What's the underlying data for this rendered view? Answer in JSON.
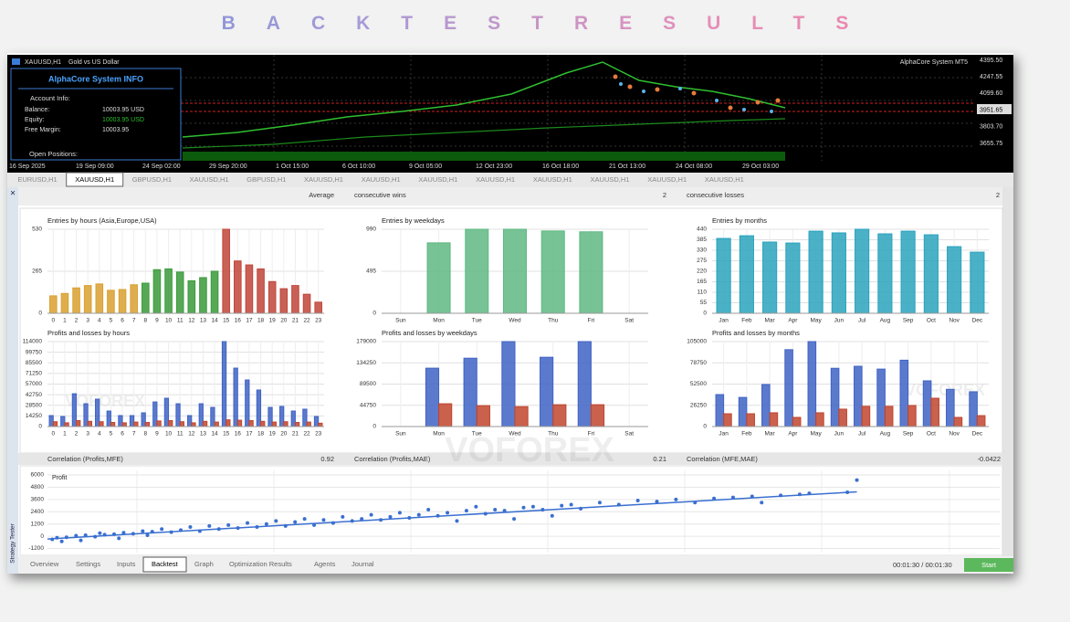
{
  "header": {
    "title": "BACKTESTRESULTS"
  },
  "terminal": {
    "symbol": "XAUUSD,H1",
    "description": "Gold vs US Dollar",
    "expert": "AlphaCore System MT5",
    "price_labels": [
      "4395.50",
      "4247.55",
      "4099.60",
      "3951.65",
      "3803.70",
      "3655.75"
    ],
    "time_labels": [
      "16 Sep 2025",
      "19 Sep 09:00",
      "24 Sep 02:00",
      "29 Sep 20:00",
      "1 Oct 15:00",
      "6 Oct 10:00",
      "9 Oct 05:00",
      "12 Oct 23:00",
      "16 Oct 18:00",
      "21 Oct 13:00",
      "24 Oct 08:00",
      "29 Oct 03:00"
    ]
  },
  "info_panel": {
    "title": "AlphaCore System INFO",
    "account": "Account Info:",
    "rows": [
      [
        "Balance:",
        "10003.95 USD"
      ],
      [
        "Equity:",
        "10003.95 USD"
      ],
      [
        "Free Margin:",
        "10003.95"
      ]
    ],
    "positions": "Open Positions:"
  },
  "symbol_tabs": {
    "items": [
      "EURUSD,H1",
      "XAUUSD,H1",
      "GBPUSD,H1",
      "XAUUSD,H1",
      "GBPUSD,H1",
      "XAUUSD,H1",
      "XAUUSD,H1",
      "XAUUSD,H1",
      "XAUUSD,H1",
      "XAUUSD,H1",
      "XAUUSD,H1",
      "XAUUSD,H1",
      "XAUUSD,H1"
    ],
    "active": 1
  },
  "stats": {
    "label": "Average",
    "wins_label": "consecutive wins",
    "wins": 2,
    "losses_label": "consecutive losses",
    "losses": 2
  },
  "correlations": [
    {
      "label": "Correlation (Profits,MFE)",
      "value": 0.92
    },
    {
      "label": "Correlation (Profits,MAE)",
      "value": 0.21
    },
    {
      "label": "Correlation (MFE,MAE)",
      "value": -0.0422
    }
  ],
  "chart_data": [
    {
      "type": "bar",
      "title": "Entries by hours (Asia,Europe,USA)",
      "categories": [
        0,
        1,
        2,
        3,
        4,
        5,
        6,
        7,
        8,
        9,
        10,
        11,
        12,
        13,
        14,
        15,
        16,
        17,
        18,
        19,
        20,
        21,
        22,
        23
      ],
      "ylim": [
        0,
        530
      ],
      "yticks": [
        0,
        265,
        530
      ],
      "series": [
        {
          "colors": [
            "#d9a030",
            "#d9a030",
            "#d9a030",
            "#d9a030",
            "#d9a030",
            "#d9a030",
            "#d9a030",
            "#d9a030",
            "#3a9a3a",
            "#3a9a3a",
            "#3a9a3a",
            "#3a9a3a",
            "#3a9a3a",
            "#3a9a3a",
            "#3a9a3a",
            "#c0453a",
            "#c0453a",
            "#c0453a",
            "#c0453a",
            "#c0453a",
            "#c0453a",
            "#c0453a",
            "#c0453a",
            "#c0453a"
          ],
          "values": [
            110,
            125,
            160,
            175,
            185,
            145,
            150,
            180,
            190,
            275,
            280,
            260,
            205,
            225,
            265,
            530,
            330,
            305,
            280,
            200,
            155,
            175,
            120,
            70
          ]
        }
      ]
    },
    {
      "type": "bar",
      "title": "Entries by weekdays",
      "categories": [
        "Sun",
        "Mon",
        "Tue",
        "Wed",
        "Thu",
        "Fri",
        "Sat"
      ],
      "ylim": [
        0,
        990
      ],
      "yticks": [
        0,
        495,
        990
      ],
      "series": [
        {
          "color": "#5fb883",
          "values": [
            0,
            830,
            990,
            990,
            970,
            960,
            0
          ]
        }
      ]
    },
    {
      "type": "bar",
      "title": "Entries by months",
      "categories": [
        "Jan",
        "Feb",
        "Mar",
        "Apr",
        "May",
        "Jun",
        "Jul",
        "Aug",
        "Sep",
        "Oct",
        "Nov",
        "Dec"
      ],
      "ylim": [
        0,
        440
      ],
      "yticks": [
        0,
        55,
        110,
        165,
        220,
        275,
        330,
        385,
        440
      ],
      "series": [
        {
          "color": "#2aa3bd",
          "values": [
            392,
            406,
            373,
            368,
            430,
            421,
            440,
            416,
            430,
            411,
            349,
            320
          ]
        }
      ]
    },
    {
      "type": "bar",
      "title": "Profits and losses by hours",
      "categories": [
        0,
        1,
        2,
        3,
        4,
        5,
        6,
        7,
        8,
        9,
        10,
        11,
        12,
        13,
        14,
        15,
        16,
        17,
        18,
        19,
        20,
        21,
        22,
        23
      ],
      "ylim": [
        0,
        114000
      ],
      "yticks": [
        0,
        14250,
        28500,
        42750,
        57000,
        71250,
        85500,
        99750,
        114000
      ],
      "series": [
        {
          "color": "#3f63c4",
          "values": [
            14700,
            13500,
            44000,
            30600,
            36800,
            20800,
            14700,
            14700,
            18400,
            33000,
            38000,
            30600,
            14700,
            30600,
            25700,
            114000,
            78400,
            62500,
            49000,
            25700,
            27000,
            20800,
            23300,
            13500
          ]
        },
        {
          "color": "#c0452e",
          "values": [
            6500,
            5000,
            8000,
            7000,
            6500,
            5500,
            5000,
            6000,
            5500,
            7500,
            8000,
            6500,
            5000,
            7000,
            6000,
            9000,
            8500,
            8000,
            7000,
            6000,
            6500,
            5500,
            6000,
            4500
          ]
        }
      ]
    },
    {
      "type": "bar",
      "title": "Profits and losses by weekdays",
      "categories": [
        "Sun",
        "Mon",
        "Tue",
        "Wed",
        "Thu",
        "Fri",
        "Sat"
      ],
      "ylim": [
        0,
        179000
      ],
      "yticks": [
        0,
        44750,
        89500,
        134250,
        179000
      ],
      "series": [
        {
          "color": "#3f63c4",
          "values": [
            0,
            123000,
            144000,
            179000,
            146000,
            179000,
            0
          ]
        },
        {
          "color": "#c0452e",
          "values": [
            0,
            48000,
            44000,
            42000,
            46000,
            46000,
            0
          ]
        }
      ]
    },
    {
      "type": "bar",
      "title": "Profits and losses by months",
      "categories": [
        "Jan",
        "Feb",
        "Mar",
        "Apr",
        "May",
        "Jun",
        "Jul",
        "Aug",
        "Sep",
        "Oct",
        "Nov",
        "Dec"
      ],
      "ylim": [
        0,
        105000
      ],
      "yticks": [
        0,
        26250,
        52500,
        78750,
        105000
      ],
      "series": [
        {
          "color": "#3f63c4",
          "values": [
            39500,
            36000,
            52000,
            95000,
            105000,
            72000,
            74500,
            71000,
            82000,
            56500,
            46000,
            43000
          ]
        },
        {
          "color": "#c0452e",
          "values": [
            15800,
            15800,
            17000,
            11300,
            17000,
            21500,
            25000,
            25000,
            26000,
            35000,
            11300,
            13500
          ]
        }
      ]
    },
    {
      "type": "scatter",
      "label": "Profit",
      "color": "#3a6fd0",
      "xlim": [
        0,
        100
      ],
      "ylim": [
        -1600,
        6450
      ],
      "yticks": [
        6000,
        4800,
        3600,
        2400,
        1200,
        0,
        -1200
      ],
      "x": [
        0.5,
        1,
        1.5,
        2,
        3,
        3.5,
        4,
        5,
        5.5,
        6,
        7,
        7.5,
        8,
        9,
        10,
        10.5,
        11,
        12,
        13,
        14,
        15,
        16,
        17,
        18,
        19,
        20,
        21,
        22,
        23,
        24,
        25,
        26,
        27,
        28,
        29,
        30,
        31,
        32,
        33,
        34,
        35,
        36,
        37,
        38,
        39,
        40,
        41,
        42,
        43,
        44,
        45,
        46,
        47,
        48,
        49,
        50,
        51,
        52,
        53,
        54,
        55,
        56,
        58,
        60,
        62,
        64,
        66,
        68,
        70,
        72,
        74,
        75,
        77,
        79,
        80,
        84,
        85
      ],
      "values": [
        -300,
        -150,
        -500,
        -100,
        50,
        -400,
        100,
        -50,
        300,
        150,
        200,
        -200,
        350,
        250,
        500,
        100,
        450,
        700,
        400,
        600,
        900,
        500,
        1000,
        700,
        1100,
        800,
        1300,
        900,
        1200,
        1500,
        1000,
        1400,
        1700,
        1100,
        1600,
        1300,
        1900,
        1500,
        1700,
        2100,
        1600,
        1900,
        2300,
        1800,
        2100,
        2600,
        2000,
        2300,
        1500,
        2500,
        2900,
        2200,
        2600,
        2500,
        1700,
        2800,
        2900,
        2600,
        2000,
        3000,
        3100,
        2700,
        3300,
        3100,
        3500,
        3400,
        3600,
        3300,
        3700,
        3800,
        3900,
        3300,
        4000,
        4100,
        4200,
        4300,
        5500
      ],
      "trend": {
        "x": [
          0,
          85
        ],
        "values": [
          -270,
          4350
        ]
      }
    }
  ],
  "bottom_tabs": {
    "items": [
      "Overview",
      "Settings",
      "Inputs",
      "Backtest",
      "Graph",
      "Optimization Results",
      "Agents",
      "Journal"
    ],
    "active": 3
  },
  "timer": "00:01:30 / 00:01:30",
  "start": "Start",
  "side_label": "Strategy Tester",
  "watermark": "VOFOREX"
}
